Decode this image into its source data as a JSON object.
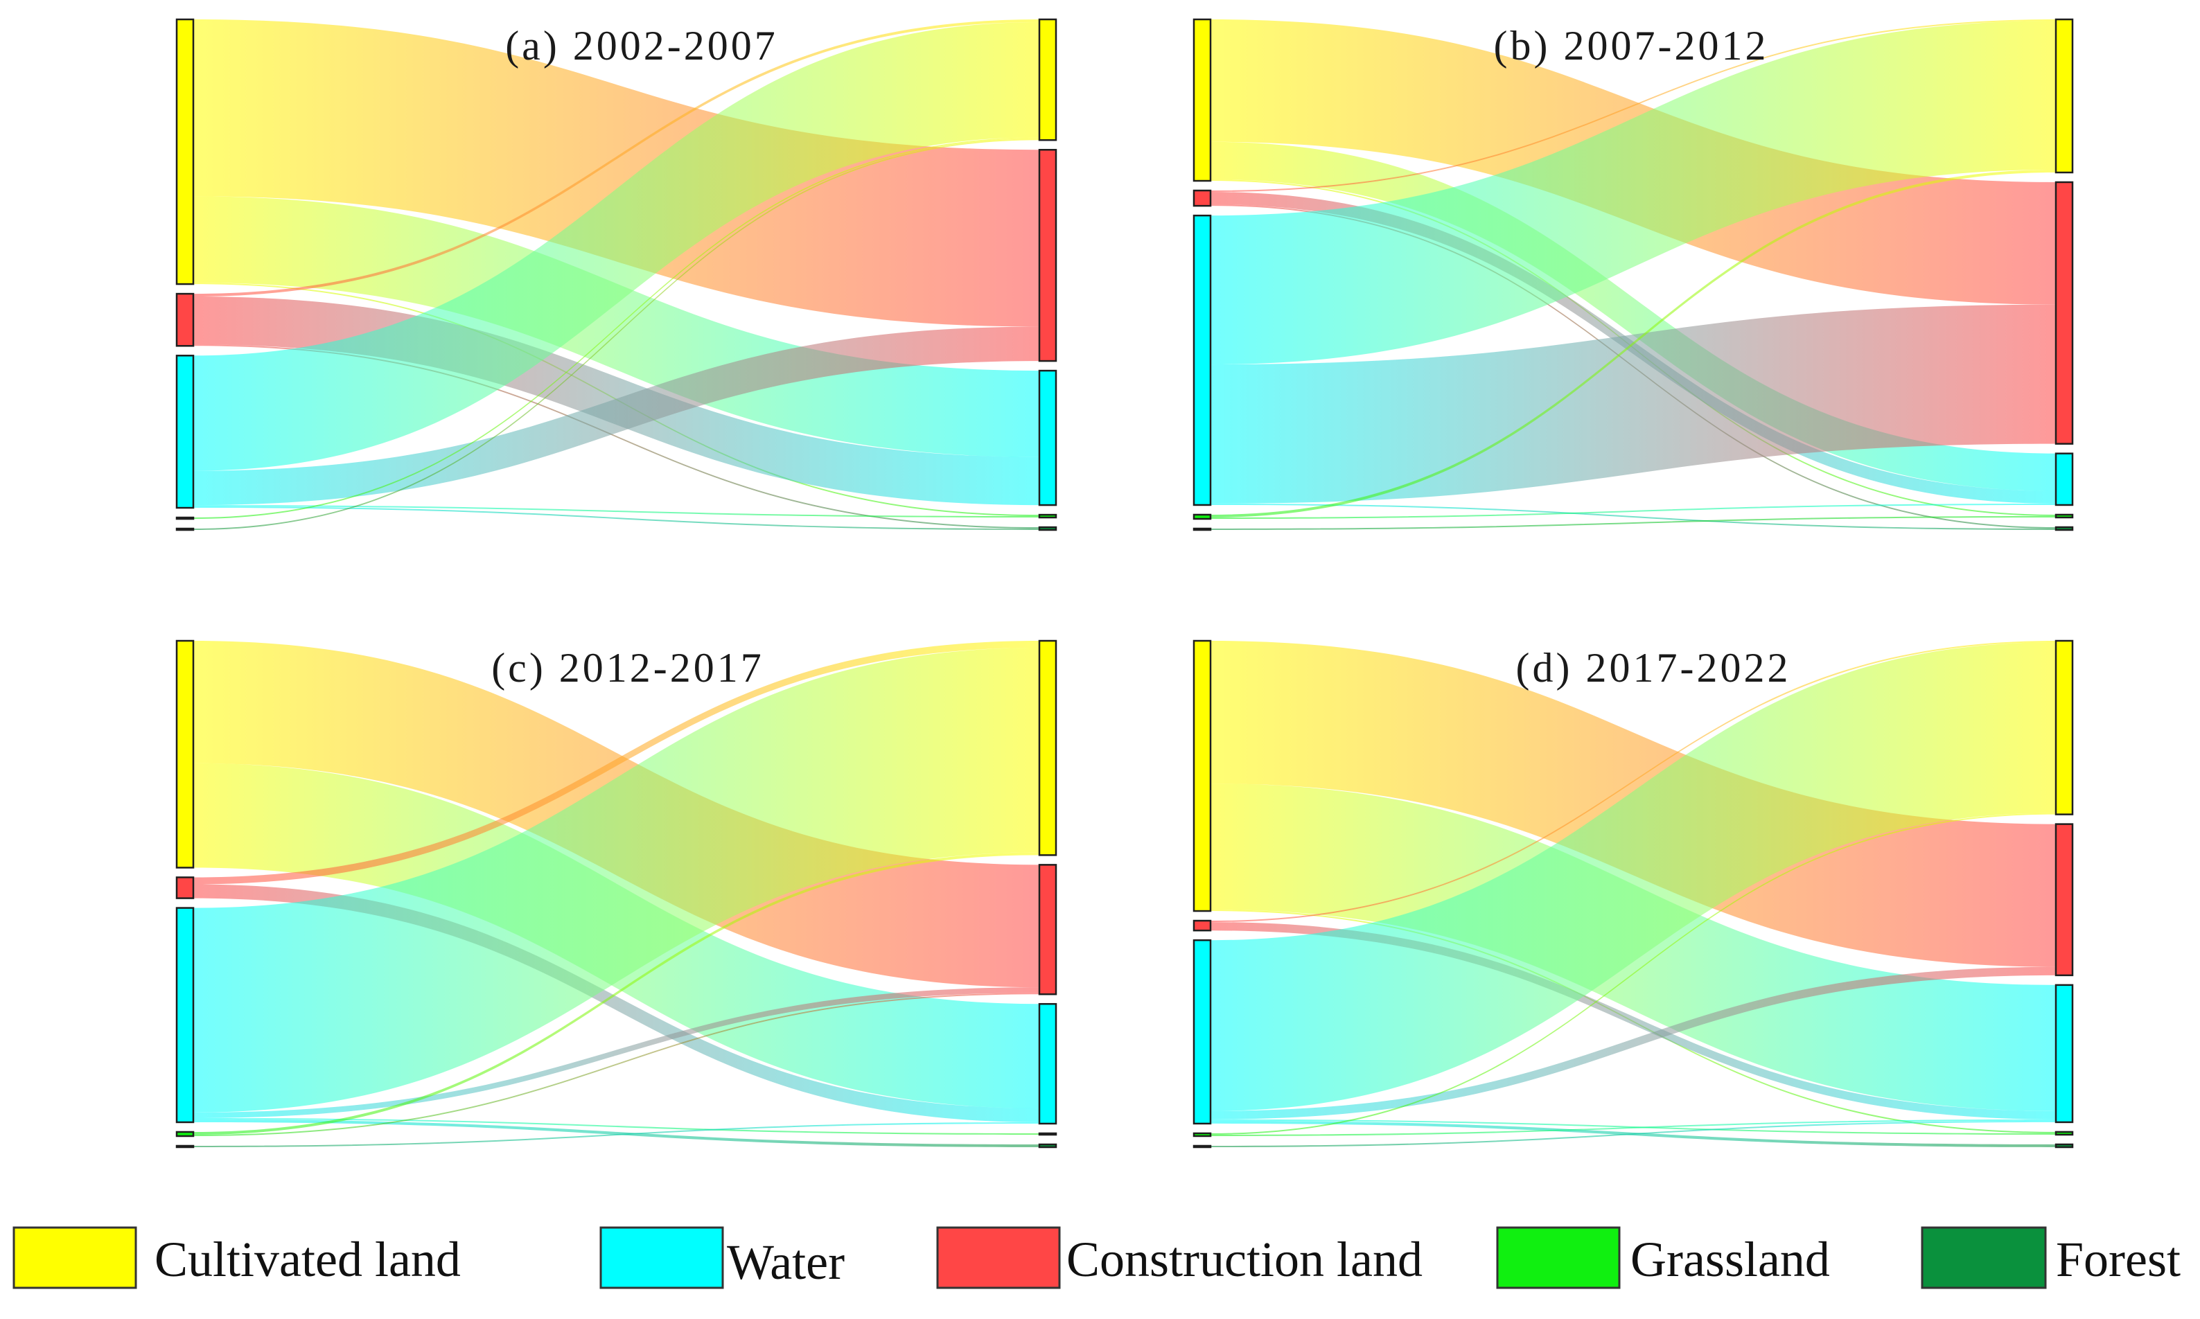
{
  "legend": {
    "items": [
      {
        "label": "Cultivated land",
        "color": "#FFFF00"
      },
      {
        "label": "Water",
        "color": "#00FFFF"
      },
      {
        "label": "Construction land",
        "color": "#FF4646"
      },
      {
        "label": "Grassland",
        "color": "#10F010"
      },
      {
        "label": "Forest",
        "color": "#0A913D"
      }
    ]
  },
  "chart_data": [
    {
      "type": "sankey",
      "title": "(a) 2002-2007",
      "nodes": [
        "Cultivated land",
        "Construction land",
        "Water",
        "Grassland",
        "Forest"
      ],
      "links": [
        {
          "source": "Cultivated land",
          "target": "Construction land",
          "value": 129
        },
        {
          "source": "Cultivated land",
          "target": "Water",
          "value": 63
        },
        {
          "source": "Cultivated land",
          "target": "Grassland",
          "value": 1
        },
        {
          "source": "Construction land",
          "target": "Cultivated land",
          "value": 2
        },
        {
          "source": "Construction land",
          "target": "Water",
          "value": 35
        },
        {
          "source": "Construction land",
          "target": "Forest",
          "value": 1
        },
        {
          "source": "Water",
          "target": "Cultivated land",
          "value": 84
        },
        {
          "source": "Water",
          "target": "Construction land",
          "value": 25
        },
        {
          "source": "Water",
          "target": "Grassland",
          "value": 1
        },
        {
          "source": "Water",
          "target": "Forest",
          "value": 1
        },
        {
          "source": "Grassland",
          "target": "Cultivated land",
          "value": 1
        },
        {
          "source": "Forest",
          "target": "Cultivated land",
          "value": 1
        }
      ]
    },
    {
      "type": "sankey",
      "title": "(b) 2007-2012",
      "nodes": [
        "Cultivated land",
        "Construction land",
        "Water",
        "Grassland",
        "Forest"
      ],
      "links": [
        {
          "source": "Cultivated land",
          "target": "Construction land",
          "value": 88
        },
        {
          "source": "Cultivated land",
          "target": "Water",
          "value": 27
        },
        {
          "source": "Cultivated land",
          "target": "Grassland",
          "value": 1
        },
        {
          "source": "Construction land",
          "target": "Cultivated land",
          "value": 1
        },
        {
          "source": "Construction land",
          "target": "Water",
          "value": 9
        },
        {
          "source": "Construction land",
          "target": "Forest",
          "value": 1
        },
        {
          "source": "Water",
          "target": "Cultivated land",
          "value": 107
        },
        {
          "source": "Water",
          "target": "Construction land",
          "value": 100
        },
        {
          "source": "Water",
          "target": "Forest",
          "value": 1
        },
        {
          "source": "Grassland",
          "target": "Cultivated land",
          "value": 2
        },
        {
          "source": "Grassland",
          "target": "Water",
          "value": 1
        },
        {
          "source": "Forest",
          "target": "Grassland",
          "value": 1
        }
      ]
    },
    {
      "type": "sankey",
      "title": "(c) 2012-2017",
      "nodes": [
        "Cultivated land",
        "Construction land",
        "Water",
        "Grassland",
        "Forest"
      ],
      "links": [
        {
          "source": "Cultivated land",
          "target": "Construction land",
          "value": 88
        },
        {
          "source": "Cultivated land",
          "target": "Water",
          "value": 75
        },
        {
          "source": "Construction land",
          "target": "Cultivated land",
          "value": 5
        },
        {
          "source": "Construction land",
          "target": "Water",
          "value": 10
        },
        {
          "source": "Water",
          "target": "Cultivated land",
          "value": 147
        },
        {
          "source": "Water",
          "target": "Construction land",
          "value": 4
        },
        {
          "source": "Water",
          "target": "Grassland",
          "value": 1
        },
        {
          "source": "Water",
          "target": "Forest",
          "value": 2
        },
        {
          "source": "Grassland",
          "target": "Cultivated land",
          "value": 2
        },
        {
          "source": "Grassland",
          "target": "Construction land",
          "value": 1
        },
        {
          "source": "Forest",
          "target": "Water",
          "value": 1
        }
      ]
    },
    {
      "type": "sankey",
      "title": "(d) 2017-2022",
      "nodes": [
        "Cultivated land",
        "Construction land",
        "Water",
        "Grassland",
        "Forest"
      ],
      "links": [
        {
          "source": "Cultivated land",
          "target": "Construction land",
          "value": 102
        },
        {
          "source": "Cultivated land",
          "target": "Water",
          "value": 90
        },
        {
          "source": "Cultivated land",
          "target": "Grassland",
          "value": 1
        },
        {
          "source": "Construction land",
          "target": "Cultivated land",
          "value": 1
        },
        {
          "source": "Construction land",
          "target": "Water",
          "value": 6
        },
        {
          "source": "Water",
          "target": "Cultivated land",
          "value": 122
        },
        {
          "source": "Water",
          "target": "Construction land",
          "value": 6
        },
        {
          "source": "Water",
          "target": "Grassland",
          "value": 1
        },
        {
          "source": "Water",
          "target": "Forest",
          "value": 2
        },
        {
          "source": "Grassland",
          "target": "Cultivated land",
          "value": 1
        },
        {
          "source": "Grassland",
          "target": "Water",
          "value": 1
        },
        {
          "source": "Forest",
          "target": "Water",
          "value": 1
        }
      ]
    }
  ]
}
